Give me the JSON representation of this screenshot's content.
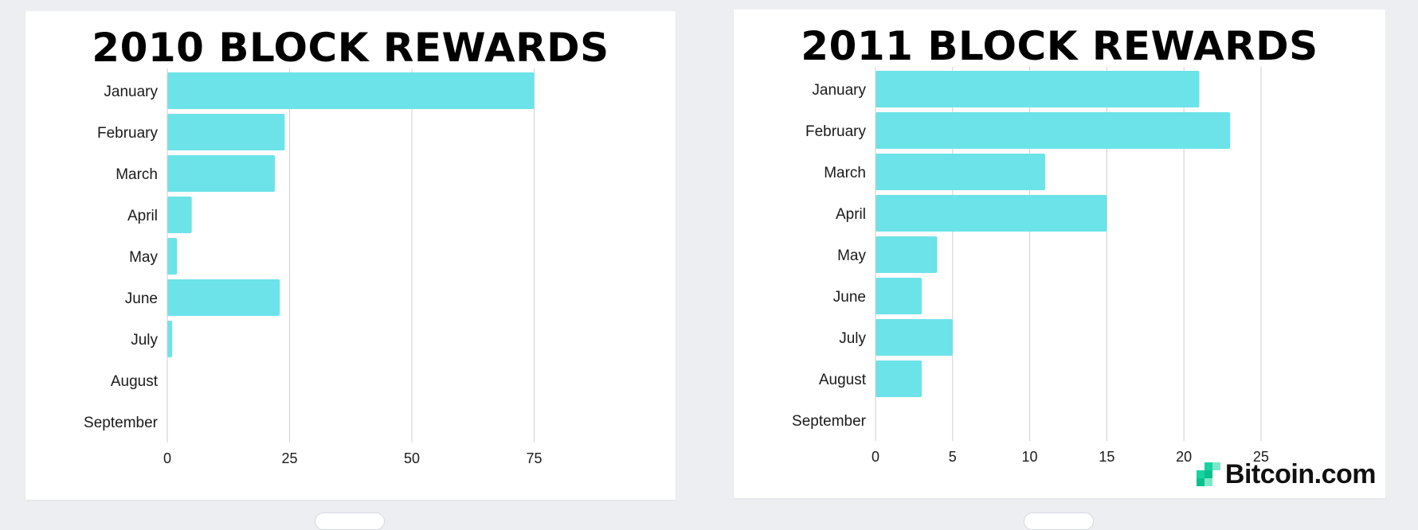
{
  "charts": [
    {
      "title": "2010 BLOCK REWARDS",
      "chart_data": {
        "type": "bar",
        "orientation": "horizontal",
        "title": "2010 BLOCK REWARDS",
        "categories": [
          "January",
          "February",
          "March",
          "April",
          "May",
          "June",
          "July",
          "August",
          "September"
        ],
        "values": [
          75,
          24,
          22,
          5,
          2,
          23,
          1,
          0,
          0
        ],
        "xticks": [
          "0",
          "25",
          "50",
          "75"
        ],
        "xlim": [
          0,
          100
        ],
        "grid": "vertical",
        "bar_color": "#6ce3e8"
      }
    },
    {
      "title": "2011 BLOCK REWARDS",
      "chart_data": {
        "type": "bar",
        "orientation": "horizontal",
        "title": "2011 BLOCK REWARDS",
        "categories": [
          "January",
          "February",
          "March",
          "April",
          "May",
          "June",
          "July",
          "August",
          "September"
        ],
        "values": [
          21,
          23,
          11,
          15,
          4,
          3,
          5,
          3,
          0
        ],
        "xticks": [
          "0",
          "5",
          "10",
          "15",
          "20",
          "25"
        ],
        "xlim": [
          0,
          28
        ],
        "grid": "vertical",
        "bar_color": "#6ce3e8"
      }
    }
  ],
  "brand": {
    "text": "Bitcoin.com",
    "colors": [
      "#0ac18e",
      "#16d3a0",
      "#7ce8c9"
    ]
  }
}
